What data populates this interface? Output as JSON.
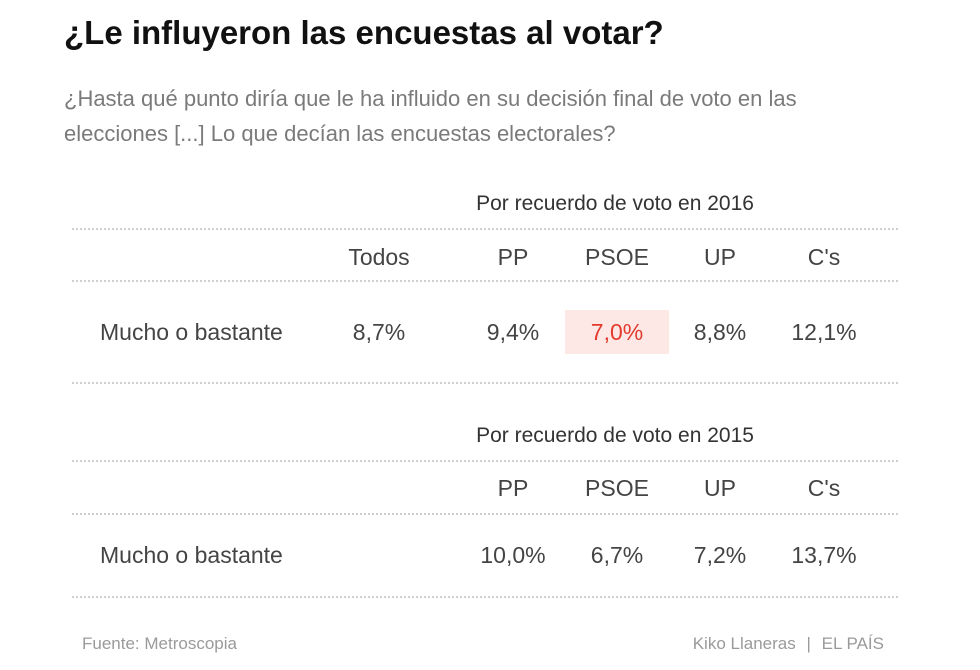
{
  "title": "¿Le influyeron las encuestas al votar?",
  "subtitle": "¿Hasta qué punto diría que le ha influido en su decisión final de voto en las elecciones [...] Lo que decían las encuestas electorales?",
  "chart_data": [
    {
      "type": "table",
      "title": "Por recuerdo de voto en 2016",
      "columns": [
        "Todos",
        "PP",
        "PSOE",
        "UP",
        "C's"
      ],
      "rows": [
        {
          "label": "Mucho o bastante",
          "values": [
            "8,7%",
            "9,4%",
            "7,0%",
            "8,8%",
            "12,1%"
          ]
        }
      ],
      "highlight": "PSOE",
      "highlight_color": "#e23b2e",
      "highlight_background": "#fde8e6"
    },
    {
      "type": "table",
      "title": "Por recuerdo de voto en 2015",
      "columns": [
        "PP",
        "PSOE",
        "UP",
        "C's"
      ],
      "rows": [
        {
          "label": "Mucho o bastante",
          "values": [
            "10,0%",
            "6,7%",
            "7,2%",
            "13,7%"
          ]
        }
      ]
    }
  ],
  "footer": {
    "source": "Fuente: Metroscopia",
    "author": "Kiko Llaneras",
    "separator": "|",
    "publisher": "EL PAÍS"
  }
}
